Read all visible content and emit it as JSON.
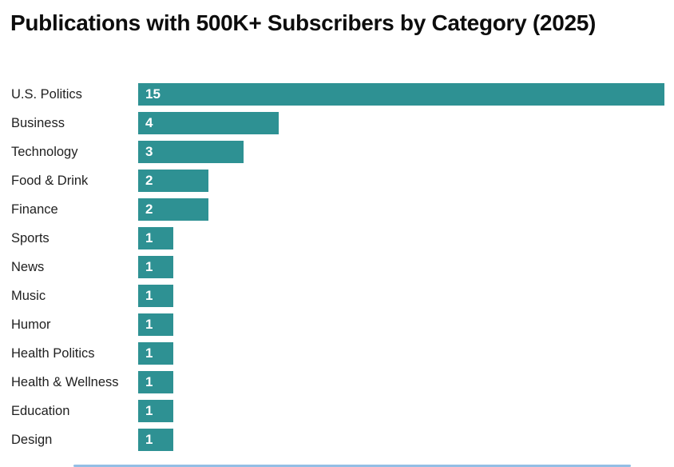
{
  "chart_data": {
    "type": "bar",
    "orientation": "horizontal",
    "title": "Publications with 500K+ Subscribers by Category (2025)",
    "categories": [
      "U.S. Politics",
      "Business",
      "Technology",
      "Food & Drink",
      "Finance",
      "Sports",
      "News",
      "Music",
      "Humor",
      "Health Politics",
      "Health & Wellness",
      "Education",
      "Design"
    ],
    "values": [
      15,
      4,
      3,
      2,
      2,
      1,
      1,
      1,
      1,
      1,
      1,
      1,
      1
    ],
    "xlabel": "",
    "ylabel": "",
    "xlim": [
      0,
      15
    ],
    "grid": false,
    "legend": false,
    "value_labels_inside_bars": true,
    "colors": {
      "bar": "#2e9193",
      "value_label": "#ffffff",
      "category_label": "#1f1f1f",
      "title": "#0d0d0d"
    }
  },
  "artifacts": {
    "clipped_bottom_line_color": "#6fa8dc"
  }
}
